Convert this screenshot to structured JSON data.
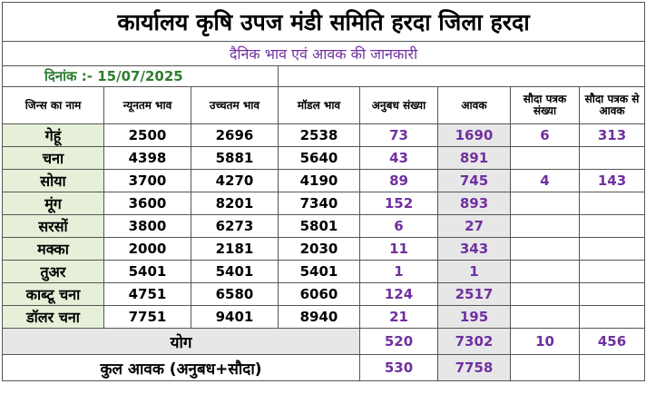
{
  "title": "कार्यालय कृषि उपज मंडी समिति हरदा जिला हरदा",
  "subtitle": "दैनिक भाव एवं आवक की जानकारी",
  "date_label": "दिनांक :- 15/07/2025",
  "columns": [
    "जिन्स का नाम",
    "न्यूनतम भाव",
    "उच्चतम भाव",
    "मॉडल भाव",
    "अनुबध संख्या",
    "आवक",
    "सौदा पत्रक संख्या",
    "सौदा पत्रक से आवक"
  ],
  "rows": [
    {
      "name": "गेहूं",
      "min": "2500",
      "max": "2696",
      "model": "2538",
      "anubandh": "73",
      "aavak": "1690",
      "sauda_count": "6",
      "sauda_aavak": "313"
    },
    {
      "name": "चना",
      "min": "4398",
      "max": "5881",
      "model": "5640",
      "anubandh": "43",
      "aavak": "891",
      "sauda_count": "",
      "sauda_aavak": ""
    },
    {
      "name": "सोया",
      "min": "3700",
      "max": "4270",
      "model": "4190",
      "anubandh": "89",
      "aavak": "745",
      "sauda_count": "4",
      "sauda_aavak": "143"
    },
    {
      "name": "मूंग",
      "min": "3600",
      "max": "8201",
      "model": "7340",
      "anubandh": "152",
      "aavak": "893",
      "sauda_count": "",
      "sauda_aavak": ""
    },
    {
      "name": "सरसों",
      "min": "3800",
      "max": "6273",
      "model": "5801",
      "anubandh": "6",
      "aavak": "27",
      "sauda_count": "",
      "sauda_aavak": ""
    },
    {
      "name": "मक्का",
      "min": "2000",
      "max": "2181",
      "model": "2030",
      "anubandh": "11",
      "aavak": "343",
      "sauda_count": "",
      "sauda_aavak": ""
    },
    {
      "name": "तुअर",
      "min": "5401",
      "max": "5401",
      "model": "5401",
      "anubandh": "1",
      "aavak": "1",
      "sauda_count": "",
      "sauda_aavak": ""
    },
    {
      "name": "काब्टू चना",
      "min": "4751",
      "max": "6580",
      "model": "6060",
      "anubandh": "124",
      "aavak": "2517",
      "sauda_count": "",
      "sauda_aavak": ""
    },
    {
      "name": "डॉलर चना",
      "min": "7751",
      "max": "9401",
      "model": "8940",
      "anubandh": "21",
      "aavak": "195",
      "sauda_count": "",
      "sauda_aavak": ""
    }
  ],
  "total": {
    "label": "योग",
    "anubandh": "520",
    "aavak": "7302",
    "sauda_count": "10",
    "sauda_aavak": "456"
  },
  "grand": {
    "label": "कुल आवक (अनुबध+सौदा)",
    "anubandh": "530",
    "aavak": "7758"
  }
}
